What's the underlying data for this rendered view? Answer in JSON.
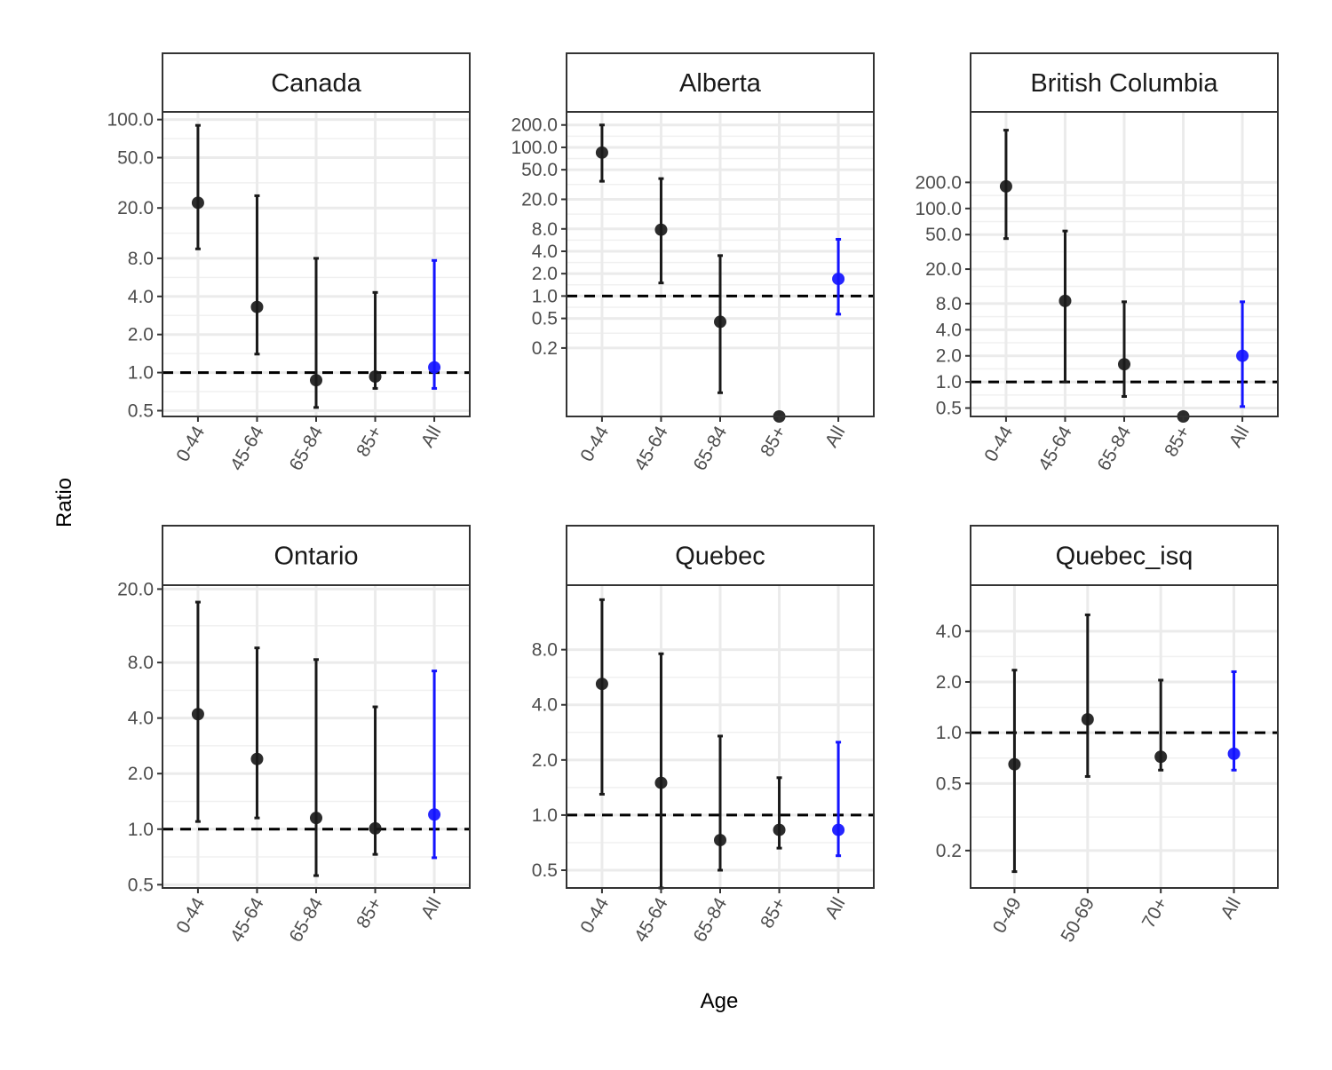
{
  "chart_data": {
    "type": "scatter",
    "xlabel": "Age",
    "ylabel": "Ratio",
    "y_scale": "log",
    "reference_line": 1.0,
    "colors": {
      "age_group": "#1a1a1a",
      "all": "#1414ff",
      "reference": "#000000"
    },
    "facets": [
      {
        "title": "Canada",
        "categories": [
          "0-44",
          "45-64",
          "65-84",
          "85+",
          "All"
        ],
        "ylim": [
          0.45,
          115
        ],
        "yticks": [
          "0.5",
          "1.0",
          "2.0",
          "4.0",
          "8.0",
          "20.0",
          "50.0",
          "100.0"
        ],
        "points": [
          {
            "x": "0-44",
            "y": 22,
            "lo": 9.5,
            "hi": 90
          },
          {
            "x": "45-64",
            "y": 3.3,
            "lo": 1.4,
            "hi": 25
          },
          {
            "x": "65-84",
            "y": 0.87,
            "lo": 0.53,
            "hi": 8.0
          },
          {
            "x": "85+",
            "y": 0.93,
            "lo": 0.75,
            "hi": 4.3
          },
          {
            "x": "All",
            "y": 1.1,
            "lo": 0.75,
            "hi": 7.7
          }
        ]
      },
      {
        "title": "Alberta",
        "categories": [
          "0-44",
          "45-64",
          "65-84",
          "85+",
          "All"
        ],
        "ylim": [
          0.024,
          300
        ],
        "yticks": [
          "0.2",
          "0.5",
          "1.0",
          "2.0",
          "4.0",
          "8.0",
          "20.0",
          "50.0",
          "100.0",
          "200.0"
        ],
        "points": [
          {
            "x": "0-44",
            "y": 85,
            "lo": 35,
            "hi": 200
          },
          {
            "x": "45-64",
            "y": 7.8,
            "lo": 1.5,
            "hi": 38
          },
          {
            "x": "65-84",
            "y": 0.45,
            "lo": 0.05,
            "hi": 3.5
          },
          {
            "x": "85+",
            "y": 0.024,
            "lo": 0.024,
            "hi": 0.024
          },
          {
            "x": "All",
            "y": 1.7,
            "lo": 0.57,
            "hi": 5.8
          }
        ]
      },
      {
        "title": "British Columbia",
        "categories": [
          "0-44",
          "45-64",
          "65-84",
          "85+",
          "All"
        ],
        "ylim": [
          0.4,
          1300
        ],
        "yticks": [
          "0.5",
          "1.0",
          "2.0",
          "4.0",
          "8.0",
          "20.0",
          "50.0",
          "100.0",
          "200.0"
        ],
        "points": [
          {
            "x": "0-44",
            "y": 180,
            "lo": 45,
            "hi": 800
          },
          {
            "x": "45-64",
            "y": 8.6,
            "lo": 1.0,
            "hi": 55
          },
          {
            "x": "65-84",
            "y": 1.6,
            "lo": 0.68,
            "hi": 8.4
          },
          {
            "x": "85+",
            "y": 0.4,
            "lo": 0.4,
            "hi": 0.4
          },
          {
            "x": "All",
            "y": 2.0,
            "lo": 0.52,
            "hi": 8.4
          }
        ]
      },
      {
        "title": "Ontario",
        "categories": [
          "0-44",
          "45-64",
          "65-84",
          "85+",
          "All"
        ],
        "ylim": [
          0.48,
          21
        ],
        "yticks": [
          "0.5",
          "1.0",
          "2.0",
          "4.0",
          "8.0",
          "20.0"
        ],
        "points": [
          {
            "x": "0-44",
            "y": 4.2,
            "lo": 1.1,
            "hi": 17
          },
          {
            "x": "45-64",
            "y": 2.4,
            "lo": 1.15,
            "hi": 9.6
          },
          {
            "x": "65-84",
            "y": 1.15,
            "lo": 0.56,
            "hi": 8.3
          },
          {
            "x": "85+",
            "y": 1.01,
            "lo": 0.73,
            "hi": 4.6
          },
          {
            "x": "All",
            "y": 1.2,
            "lo": 0.7,
            "hi": 7.2
          }
        ]
      },
      {
        "title": "Quebec",
        "categories": [
          "0-44",
          "45-64",
          "65-84",
          "85+",
          "All"
        ],
        "ylim": [
          0.4,
          18
        ],
        "yticks": [
          "0.5",
          "1.0",
          "2.0",
          "4.0",
          "8.0"
        ],
        "points": [
          {
            "x": "0-44",
            "y": 5.2,
            "lo": 1.3,
            "hi": 15
          },
          {
            "x": "45-64",
            "y": 1.5,
            "lo": 0.36,
            "hi": 7.6
          },
          {
            "x": "65-84",
            "y": 0.73,
            "lo": 0.5,
            "hi": 2.7
          },
          {
            "x": "85+",
            "y": 0.83,
            "lo": 0.66,
            "hi": 1.6
          },
          {
            "x": "All",
            "y": 0.83,
            "lo": 0.6,
            "hi": 2.5
          }
        ]
      },
      {
        "title": "Quebec_isq",
        "categories": [
          "0-49",
          "50-69",
          "70+",
          "All"
        ],
        "ylim": [
          0.12,
          7.5
        ],
        "yticks": [
          "0.2",
          "0.5",
          "1.0",
          "2.0",
          "4.0"
        ],
        "points": [
          {
            "x": "0-49",
            "y": 0.65,
            "lo": 0.15,
            "hi": 2.35
          },
          {
            "x": "50-69",
            "y": 1.2,
            "lo": 0.55,
            "hi": 5.0
          },
          {
            "x": "70+",
            "y": 0.72,
            "lo": 0.6,
            "hi": 2.05
          },
          {
            "x": "All",
            "y": 0.75,
            "lo": 0.6,
            "hi": 2.3
          }
        ]
      }
    ]
  }
}
